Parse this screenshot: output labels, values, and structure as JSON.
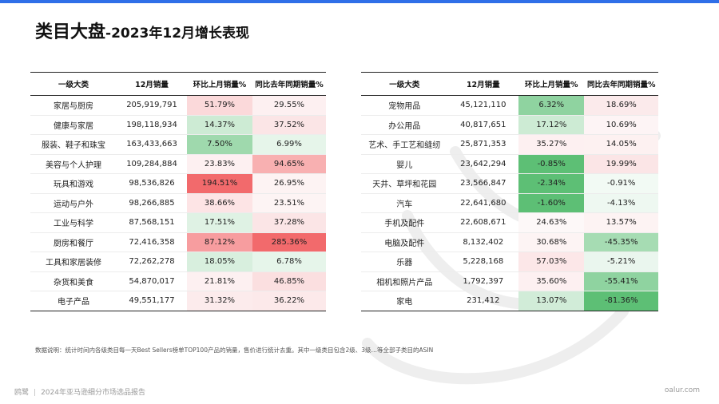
{
  "title": {
    "main": "类目大盘",
    "sub": "-2023年12月增长表现"
  },
  "headers": [
    "一级大类",
    "12月销量",
    "环比上月销量%",
    "同比去年同期销量%"
  ],
  "left_table": {
    "rows": [
      {
        "category": "家居与厨房",
        "sales": "205,919,791",
        "mom": "51.79%",
        "yoy": "29.55%"
      },
      {
        "category": "健康与家居",
        "sales": "198,118,934",
        "mom": "14.37%",
        "yoy": "37.52%"
      },
      {
        "category": "服装、鞋子和珠宝",
        "sales": "163,433,663",
        "mom": "7.50%",
        "yoy": "6.99%"
      },
      {
        "category": "美容与个人护理",
        "sales": "109,284,884",
        "mom": "23.83%",
        "yoy": "94.65%"
      },
      {
        "category": "玩具和游戏",
        "sales": "98,536,826",
        "mom": "194.51%",
        "yoy": "26.95%"
      },
      {
        "category": "运动与户外",
        "sales": "98,266,885",
        "mom": "38.66%",
        "yoy": "23.51%"
      },
      {
        "category": "工业与科学",
        "sales": "87,568,151",
        "mom": "17.51%",
        "yoy": "37.28%"
      },
      {
        "category": "厨房和餐厅",
        "sales": "72,416,358",
        "mom": "87.12%",
        "yoy": "285.36%"
      },
      {
        "category": "工具和家居装修",
        "sales": "72,262,278",
        "mom": "18.05%",
        "yoy": "6.78%"
      },
      {
        "category": "杂货和美食",
        "sales": "54,870,017",
        "mom": "21.81%",
        "yoy": "46.85%"
      },
      {
        "category": "电子产品",
        "sales": "49,551,177",
        "mom": "31.32%",
        "yoy": "36.22%"
      }
    ]
  },
  "right_table": {
    "rows": [
      {
        "category": "宠物用品",
        "sales": "45,121,110",
        "mom": "6.32%",
        "yoy": "18.69%"
      },
      {
        "category": "办公用品",
        "sales": "40,817,651",
        "mom": "17.12%",
        "yoy": "10.69%"
      },
      {
        "category": "艺术、手工艺和缝纫",
        "sales": "25,871,353",
        "mom": "35.27%",
        "yoy": "14.05%"
      },
      {
        "category": "婴儿",
        "sales": "23,642,294",
        "mom": "-0.85%",
        "yoy": "19.99%"
      },
      {
        "category": "天井、草坪和花园",
        "sales": "23,566,847",
        "mom": "-2.34%",
        "yoy": "-0.91%"
      },
      {
        "category": "汽车",
        "sales": "22,641,680",
        "mom": "-1.60%",
        "yoy": "-4.13%"
      },
      {
        "category": "手机及配件",
        "sales": "22,608,671",
        "mom": "24.63%",
        "yoy": "13.57%"
      },
      {
        "category": "电脑及配件",
        "sales": "8,132,402",
        "mom": "30.68%",
        "yoy": "-45.35%"
      },
      {
        "category": "乐器",
        "sales": "5,228,168",
        "mom": "57.03%",
        "yoy": "-5.21%"
      },
      {
        "category": "相机和照片产品",
        "sales": "1,792,397",
        "mom": "35.60%",
        "yoy": "-55.41%"
      },
      {
        "category": "家电",
        "sales": "231,412",
        "mom": "13.07%",
        "yoy": "-81.36%"
      }
    ]
  },
  "cell_colors": {
    "left_mom": [
      "#fbd9da",
      "#cdebd4",
      "#9fd9ad",
      "#fdf0f1",
      "#f26a6c",
      "#fde4e5",
      "#dff2e4",
      "#f79d9f",
      "#d8efde",
      "#fdf0f1",
      "#fcebec"
    ],
    "left_yoy": [
      "#fdf0f1",
      "#fbe5e6",
      "#e6f5ea",
      "#f8b0b1",
      "#fdf3f3",
      "#fdf4f4",
      "#fbe5e6",
      "#f26a6c",
      "#e6f5ea",
      "#fbdfe0",
      "#fce9ea"
    ],
    "right_mom": [
      "#8fd3a0",
      "#cdebd4",
      "#fdf0f1",
      "#5dbf75",
      "#5dbf75",
      "#5dbf75",
      "#fdf8f8",
      "#fdf4f4",
      "#fce7e8",
      "#fdf0f1",
      "#d1ecd8"
    ],
    "right_yoy": [
      "#fbeaeb",
      "#fdf4f5",
      "#fdf1f1",
      "#fbe5e6",
      "#f2faf4",
      "#eef8f1",
      "#fdf3f3",
      "#a6dcb3",
      "#eaf6ee",
      "#8fd3a0",
      "#5dbf75"
    ],
    "accent": "#2f6fe8"
  },
  "note": "数据说明：统计时间内各级类目每一天Best Sellers榜单TOP100产品的销量，售价进行统计去重。其中一级类目包含2级、3级…等全部子类目的ASIN",
  "footer": {
    "brand": "鸥鹭",
    "report": "2024年亚马逊细分市场选品报告",
    "site": "oalur.com"
  }
}
